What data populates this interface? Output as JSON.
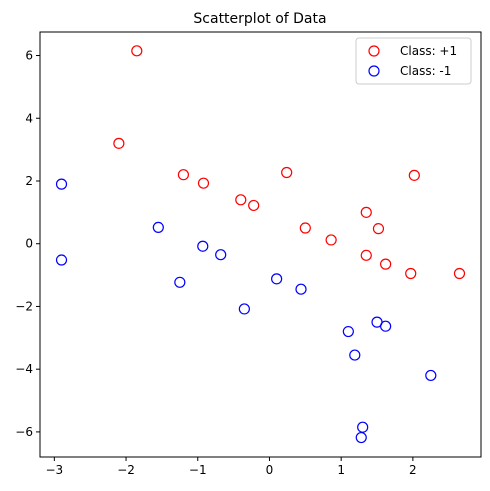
{
  "chart_data": {
    "type": "scatter",
    "title": "Scatterplot of Data",
    "xlabel": "",
    "ylabel": "",
    "xlim": [
      -3.2,
      2.95
    ],
    "ylim": [
      -6.8,
      6.75
    ],
    "xticks": [
      -3,
      -2,
      -1,
      0,
      1,
      2
    ],
    "yticks": [
      6,
      4,
      2,
      0,
      -2,
      -4,
      -6
    ],
    "grid": false,
    "legend": "top-right",
    "series": [
      {
        "name": "Class: +1",
        "color": "#ff0000",
        "marker": "hollow-circle",
        "points": [
          [
            -1.85,
            6.15
          ],
          [
            -2.1,
            3.2
          ],
          [
            -1.2,
            2.2
          ],
          [
            -0.92,
            1.93
          ],
          [
            -0.4,
            1.4
          ],
          [
            -0.22,
            1.22
          ],
          [
            0.24,
            2.27
          ],
          [
            0.5,
            0.5
          ],
          [
            0.86,
            0.12
          ],
          [
            1.35,
            1.0
          ],
          [
            1.35,
            -0.37
          ],
          [
            1.52,
            0.48
          ],
          [
            1.62,
            -0.65
          ],
          [
            2.02,
            2.18
          ],
          [
            1.97,
            -0.95
          ],
          [
            2.65,
            -0.95
          ]
        ]
      },
      {
        "name": "Class: -1",
        "color": "#0000ff",
        "marker": "hollow-circle",
        "points": [
          [
            -2.9,
            1.9
          ],
          [
            -2.9,
            -0.52
          ],
          [
            -1.55,
            0.52
          ],
          [
            -1.25,
            -1.23
          ],
          [
            -0.93,
            -0.08
          ],
          [
            -0.68,
            -0.35
          ],
          [
            -0.35,
            -2.08
          ],
          [
            0.1,
            -1.12
          ],
          [
            0.44,
            -1.45
          ],
          [
            1.1,
            -2.8
          ],
          [
            1.19,
            -3.55
          ],
          [
            1.5,
            -2.5
          ],
          [
            1.62,
            -2.63
          ],
          [
            1.3,
            -5.85
          ],
          [
            1.28,
            -6.18
          ],
          [
            2.25,
            -4.2
          ]
        ]
      }
    ]
  }
}
